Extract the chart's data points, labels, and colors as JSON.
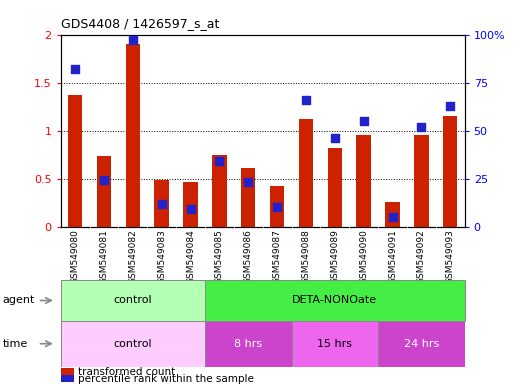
{
  "title": "GDS4408 / 1426597_s_at",
  "samples": [
    "GSM549080",
    "GSM549081",
    "GSM549082",
    "GSM549083",
    "GSM549084",
    "GSM549085",
    "GSM549086",
    "GSM549087",
    "GSM549088",
    "GSM549089",
    "GSM549090",
    "GSM549091",
    "GSM549092",
    "GSM549093"
  ],
  "transformed_count": [
    1.37,
    0.74,
    1.9,
    0.48,
    0.46,
    0.75,
    0.61,
    0.42,
    1.12,
    0.82,
    0.95,
    0.26,
    0.95,
    1.15
  ],
  "percentile_rank": [
    82,
    24,
    97,
    12,
    9,
    34,
    23,
    10,
    66,
    46,
    55,
    5,
    52,
    63
  ],
  "bar_color": "#cc2200",
  "dot_color": "#2222cc",
  "ylim_left": [
    0,
    2
  ],
  "ylim_right": [
    0,
    100
  ],
  "yticks_left": [
    0,
    0.5,
    1.0,
    1.5,
    2.0
  ],
  "ytick_labels_left": [
    "0",
    "0.5",
    "1",
    "1.5",
    "2"
  ],
  "yticks_right": [
    0,
    25,
    50,
    75,
    100
  ],
  "ytick_labels_right": [
    "0",
    "25",
    "50",
    "75",
    "100%"
  ],
  "agent_control_label": "control",
  "agent_deta_label": "DETA-NONOate",
  "time_control_label": "control",
  "time_8hrs_label": "8 hrs",
  "time_15hrs_label": "15 hrs",
  "time_24hrs_label": "24 hrs",
  "agent_row_label": "agent",
  "time_row_label": "time",
  "legend_count_label": "transformed count",
  "legend_pct_label": "percentile rank within the sample",
  "sample_bg_color": "#d4d4d4",
  "agent_control_color": "#b3ffb3",
  "agent_deta_color": "#44ee44",
  "time_control_color": "#ffccff",
  "time_8hrs_color": "#cc44cc",
  "time_15hrs_color": "#ee66ee",
  "time_24hrs_color": "#cc44cc",
  "bar_width": 0.5,
  "dot_size": 28,
  "n_control": 5,
  "n_8hrs": 3,
  "n_15hrs": 3,
  "n_24hrs": 3
}
